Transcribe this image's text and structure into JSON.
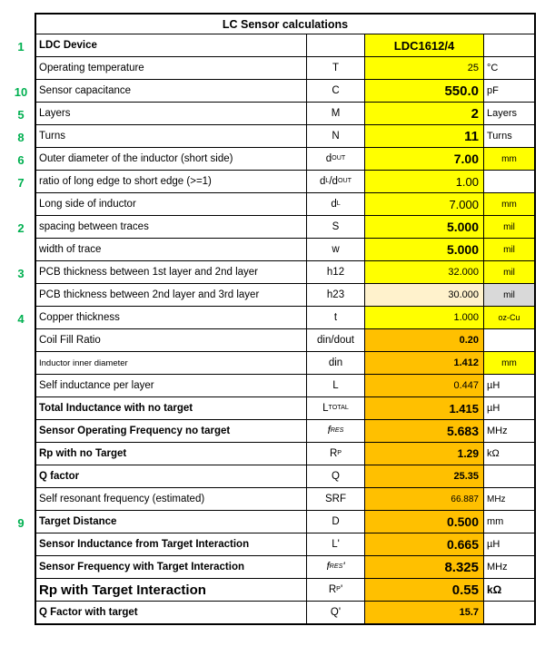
{
  "title": "LC Sensor calculations",
  "colors": {
    "input_bg": "#FFFF00",
    "computed_bg": "#FFC000",
    "pale_input_bg": "#FFF2CC",
    "disabled_unit_bg": "#D9D9D9",
    "row_number_green": "#00B050"
  },
  "rows": [
    {
      "num": "1",
      "label": "LDC Device",
      "label_bold": true,
      "symbol": "",
      "value": "LDC1612/4",
      "value_bg": "#FFFF00",
      "value_bold": true,
      "value_size": 13,
      "value_align": "center",
      "unit": "",
      "input": true
    },
    {
      "num": "",
      "label": "Operating temperature",
      "symbol": "T",
      "value": "25",
      "value_bg": "#FFFF00",
      "value_size": 11,
      "unit": "°C",
      "input": true
    },
    {
      "num": "10",
      "label": "Sensor capacitance",
      "symbol": "C",
      "value": "550.0",
      "value_bg": "#FFFF00",
      "value_bold": true,
      "value_size": 15,
      "unit": "pF",
      "input": true
    },
    {
      "num": "5",
      "label": "Layers",
      "symbol": "M",
      "value": "2",
      "value_bg": "#FFFF00",
      "value_bold": true,
      "value_size": 15,
      "unit": "Layers",
      "input": true
    },
    {
      "num": "8",
      "label": "Turns",
      "symbol": "N",
      "value": "11",
      "value_bg": "#FFFF00",
      "value_bold": true,
      "value_size": 15,
      "unit": "Turns",
      "input": true
    },
    {
      "num": "6",
      "label": "Outer diameter of the inductor (short side)",
      "symbol": "d_{OUT}",
      "value": "7.00",
      "value_bg": "#FFFF00",
      "value_bold": true,
      "value_size": 14,
      "unit": "mm",
      "unit_bg": "#FFFF00",
      "unit_align": "center",
      "unit_size": 10,
      "input": true
    },
    {
      "num": "7",
      "label": "ratio of long edge to short edge (>=1)",
      "symbol": "d_{L}/d_{OUT}",
      "value": "1.00",
      "value_bg": "#FFFF00",
      "value_size": 13,
      "unit": "",
      "input": true
    },
    {
      "num": "",
      "label": "Long side of inductor",
      "symbol": "d_{L}",
      "value": "7.000",
      "value_bg": "#FFFF00",
      "value_size": 13,
      "unit": "mm",
      "unit_bg": "#FFFF00",
      "unit_align": "center",
      "unit_size": 10,
      "input": false
    },
    {
      "num": "2",
      "label": "spacing between traces",
      "symbol": "S",
      "value": "5.000",
      "value_bg": "#FFFF00",
      "value_bold": true,
      "value_size": 14,
      "unit": "mil",
      "unit_bg": "#FFFF00",
      "unit_align": "center",
      "unit_size": 10,
      "input": true
    },
    {
      "num": "",
      "label": "width of trace",
      "symbol": "w",
      "value": "5.000",
      "value_bg": "#FFFF00",
      "value_bold": true,
      "value_size": 14,
      "unit": "mil",
      "unit_bg": "#FFFF00",
      "unit_align": "center",
      "unit_size": 10,
      "input": true
    },
    {
      "num": "3",
      "label": "PCB thickness between 1st layer and 2nd layer",
      "symbol": "h12",
      "value": "32.000",
      "value_bg": "#FFFF00",
      "value_size": 11,
      "unit": "mil",
      "unit_bg": "#FFFF00",
      "unit_align": "center",
      "unit_size": 10,
      "input": true
    },
    {
      "num": "",
      "label": "PCB thickness between 2nd layer and 3rd layer",
      "symbol": "h23",
      "value": "30.000",
      "value_bg": "#FFF2CC",
      "value_size": 11,
      "unit": "mil",
      "unit_bg": "#D9D9D9",
      "unit_align": "center",
      "unit_size": 10,
      "input": false
    },
    {
      "num": "4",
      "label": "Copper thickness",
      "symbol": "t",
      "value": "1.000",
      "value_bg": "#FFFF00",
      "value_size": 11,
      "unit": "oz-Cu",
      "unit_bg": "#FFFF00",
      "unit_align": "center",
      "unit_size": 9,
      "input": true
    },
    {
      "num": "",
      "label": "Coil Fill Ratio",
      "symbol": "din/dout",
      "value": "0.20",
      "value_bg": "#FFC000",
      "value_bold": true,
      "value_size": 11,
      "unit": "",
      "input": false
    },
    {
      "num": "",
      "label": "Inductor inner diameter",
      "label_size": 9.5,
      "symbol": "din",
      "value": "1.412",
      "value_bg": "#FFC000",
      "value_bold": true,
      "value_size": 11,
      "unit": "mm",
      "unit_bg": "#FFFF00",
      "unit_align": "center",
      "unit_size": 10,
      "input": false
    },
    {
      "num": "",
      "label": "Self inductance per layer",
      "symbol": "L",
      "value": "0.447",
      "value_bg": "#FFC000",
      "value_size": 11,
      "unit": "µH",
      "input": false
    },
    {
      "num": "",
      "label": "Total Inductance with no target",
      "label_bold": true,
      "symbol": "L_{TOTAL}",
      "value": "1.415",
      "value_bg": "#FFC000",
      "value_bold": true,
      "value_size": 13,
      "unit": "µH",
      "input": false
    },
    {
      "num": "",
      "label": "Sensor Operating Frequency no target",
      "label_bold": true,
      "symbol": "f_{RES}",
      "symbol_italic": true,
      "value": "5.683",
      "value_bg": "#FFC000",
      "value_bold": true,
      "value_size": 14,
      "unit": "MHz",
      "input": false
    },
    {
      "num": "",
      "label": "Rp with no Target",
      "label_bold": true,
      "symbol": "R_{P}",
      "value": "1.29",
      "value_bg": "#FFC000",
      "value_bold": true,
      "value_size": 12,
      "unit": "kΩ",
      "input": false
    },
    {
      "num": "",
      "label": "Q factor",
      "label_bold": true,
      "symbol": "Q",
      "value": "25.35",
      "value_bg": "#FFC000",
      "value_bold": true,
      "value_size": 11,
      "unit": "",
      "input": false
    },
    {
      "num": "",
      "label": "Self resonant frequency (estimated)",
      "symbol": "SRF",
      "value": "66.887",
      "value_bg": "#FFC000",
      "value_size": 10,
      "unit": "MHz",
      "unit_size": 10,
      "input": false
    },
    {
      "num": "9",
      "label": "Target Distance",
      "label_bold": true,
      "symbol": "D",
      "value": "0.500",
      "value_bg": "#FFC000",
      "value_bold": true,
      "value_size": 14,
      "unit": "mm",
      "input": true
    },
    {
      "num": "",
      "label": "Sensor Inductance from Target Interaction",
      "label_bold": true,
      "symbol": "L'",
      "value": "0.665",
      "value_bg": "#FFC000",
      "value_bold": true,
      "value_size": 14,
      "unit": "µH",
      "input": false
    },
    {
      "num": "",
      "label": "Sensor Frequency with Target Interaction",
      "label_bold": true,
      "symbol": "f_{RES}'",
      "symbol_italic": true,
      "value": "8.325",
      "value_bg": "#FFC000",
      "value_bold": true,
      "value_size": 15,
      "unit": "MHz",
      "input": false
    },
    {
      "num": "",
      "label": "Rp with Target Interaction",
      "label_bold": true,
      "label_size": 15,
      "symbol": "R_{P}'",
      "value": "0.55",
      "value_bg": "#FFC000",
      "value_bold": true,
      "value_size": 15,
      "unit": "kΩ",
      "unit_bold": true,
      "unit_size": 12,
      "input": false
    },
    {
      "num": "",
      "label": "Q Factor with target",
      "label_bold": true,
      "symbol": "Q'",
      "value": "15.7",
      "value_bg": "#FFC000",
      "value_bold": true,
      "value_size": 11,
      "unit": "",
      "input": false
    }
  ]
}
